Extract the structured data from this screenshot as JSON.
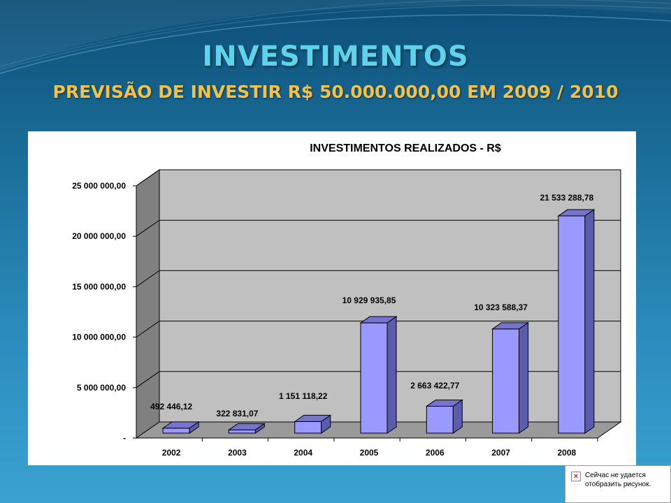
{
  "slide": {
    "title": "INVESTIMENTOS",
    "subtitle": "PREVISÃO DE INVESTIR R$ 50.000.000,00 EM 2009 / 2010"
  },
  "chart_data": {
    "type": "bar",
    "title": "INVESTIMENTOS REALIZADOS - R$",
    "xlabel": "",
    "ylabel": "",
    "categories": [
      "2002",
      "2003",
      "2004",
      "2005",
      "2006",
      "2007",
      "2008"
    ],
    "values": [
      492446.12,
      322831.07,
      1151118.22,
      10929935.85,
      2663422.77,
      10323588.37,
      21533288.78
    ],
    "value_labels": [
      "492 446,12",
      "322 831,07",
      "1 151 118,22",
      "10 929 935,85",
      "2 663 422,77",
      "10 323 588,37",
      "21 533 288,78"
    ],
    "ylim": [
      0,
      25000000
    ],
    "yticks": [
      0,
      5000000,
      10000000,
      15000000,
      20000000,
      25000000
    ],
    "ytick_labels": [
      "-",
      "5 000 000,00",
      "10 000 000,00",
      "15 000 000,00",
      "20 000 000,00",
      "25 000 000,00"
    ],
    "grid": true,
    "legend": "none",
    "style": "3d-column",
    "colors": {
      "bar_front": "#9999ff",
      "bar_side": "#5c5cae",
      "bar_top": "#7575cf",
      "wall": "#c0c0c0",
      "side_wall": "#808080",
      "floor": "#9a9a9a"
    }
  },
  "broken_image": {
    "text": "Сейчас не удается отобразить рисунок."
  }
}
